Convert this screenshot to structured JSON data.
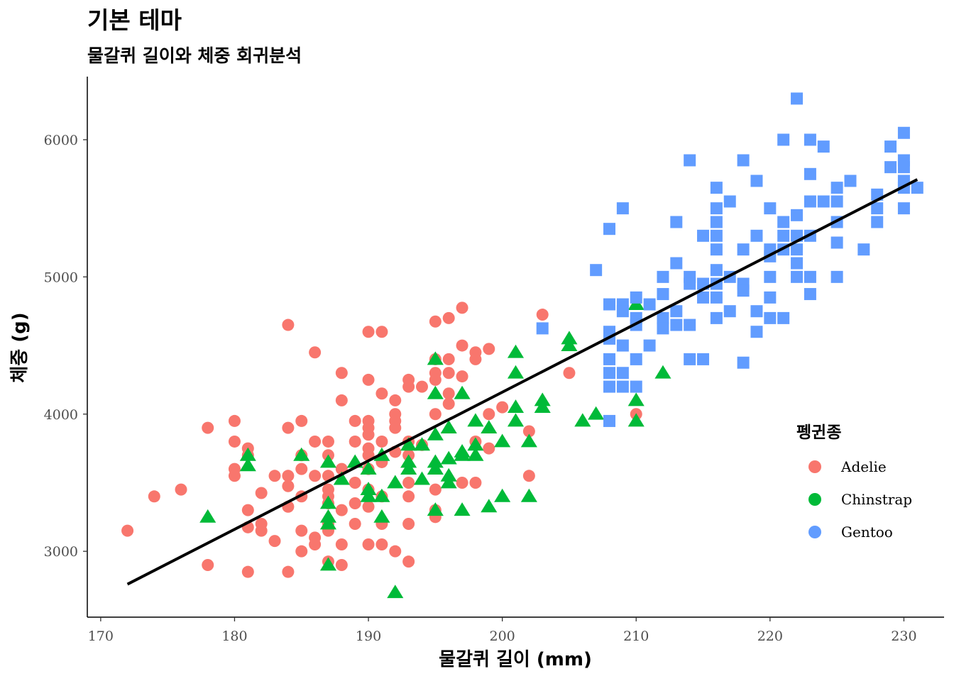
{
  "chart_data": {
    "type": "scatter",
    "title": "기본 테마",
    "subtitle": "물갈퀴 길이와 체중 회귀분석",
    "xlabel": "물갈퀴 길이 (mm)",
    "ylabel": "체중 (g)",
    "xlim": [
      169,
      233
    ],
    "ylim": [
      2520,
      6460
    ],
    "x_ticks": [
      170,
      180,
      190,
      200,
      210,
      220,
      230
    ],
    "y_ticks": [
      3000,
      4000,
      5000,
      6000
    ],
    "grid": false,
    "legend": {
      "title": "펭귄종",
      "position": "right"
    },
    "series": [
      {
        "name": "Adelie",
        "color": "#F8766D",
        "marker": "circle",
        "points": [
          [
            172,
            3150
          ],
          [
            174,
            3400
          ],
          [
            176,
            3450
          ],
          [
            178,
            3900
          ],
          [
            178,
            2900
          ],
          [
            180,
            3950
          ],
          [
            180,
            3800
          ],
          [
            180,
            3600
          ],
          [
            180,
            3550
          ],
          [
            181,
            3750
          ],
          [
            181,
            3700
          ],
          [
            181,
            3300
          ],
          [
            181,
            3175
          ],
          [
            181,
            2850
          ],
          [
            182,
            3200
          ],
          [
            182,
            3150
          ],
          [
            182,
            3425
          ],
          [
            183,
            3550
          ],
          [
            183,
            3075
          ],
          [
            184,
            4650
          ],
          [
            184,
            3900
          ],
          [
            184,
            3550
          ],
          [
            184,
            3475
          ],
          [
            184,
            3325
          ],
          [
            184,
            2850
          ],
          [
            185,
            3950
          ],
          [
            185,
            3700
          ],
          [
            185,
            3600
          ],
          [
            185,
            3400
          ],
          [
            185,
            3150
          ],
          [
            185,
            3000
          ],
          [
            186,
            4450
          ],
          [
            186,
            3800
          ],
          [
            186,
            3550
          ],
          [
            186,
            3100
          ],
          [
            186,
            3050
          ],
          [
            187,
            3800
          ],
          [
            187,
            3700
          ],
          [
            187,
            3550
          ],
          [
            187,
            3450
          ],
          [
            187,
            3400
          ],
          [
            187,
            3350
          ],
          [
            187,
            3200
          ],
          [
            187,
            3150
          ],
          [
            187,
            2925
          ],
          [
            188,
            4300
          ],
          [
            188,
            4100
          ],
          [
            188,
            3600
          ],
          [
            188,
            3300
          ],
          [
            188,
            3050
          ],
          [
            188,
            2900
          ],
          [
            189,
            3950
          ],
          [
            189,
            3800
          ],
          [
            189,
            3500
          ],
          [
            189,
            3350
          ],
          [
            189,
            3200
          ],
          [
            190,
            4600
          ],
          [
            190,
            4250
          ],
          [
            190,
            3950
          ],
          [
            190,
            3900
          ],
          [
            190,
            3850
          ],
          [
            190,
            3750
          ],
          [
            190,
            3700
          ],
          [
            190,
            3600
          ],
          [
            190,
            3450
          ],
          [
            190,
            3325
          ],
          [
            190,
            3050
          ],
          [
            191,
            4600
          ],
          [
            191,
            4150
          ],
          [
            191,
            3800
          ],
          [
            191,
            3650
          ],
          [
            191,
            3400
          ],
          [
            191,
            3200
          ],
          [
            191,
            3050
          ],
          [
            192,
            4100
          ],
          [
            192,
            4000
          ],
          [
            192,
            3950
          ],
          [
            192,
            3900
          ],
          [
            192,
            3725
          ],
          [
            192,
            3000
          ],
          [
            193,
            4250
          ],
          [
            193,
            4200
          ],
          [
            193,
            3800
          ],
          [
            193,
            3700
          ],
          [
            193,
            3500
          ],
          [
            193,
            3400
          ],
          [
            193,
            3200
          ],
          [
            193,
            2925
          ],
          [
            194,
            4200
          ],
          [
            194,
            3775
          ],
          [
            195,
            4675
          ],
          [
            195,
            4400
          ],
          [
            195,
            4300
          ],
          [
            195,
            4250
          ],
          [
            195,
            4000
          ],
          [
            195,
            3450
          ],
          [
            195,
            3300
          ],
          [
            195,
            3250
          ],
          [
            196,
            4700
          ],
          [
            196,
            4400
          ],
          [
            196,
            4300
          ],
          [
            196,
            4150
          ],
          [
            196,
            4075
          ],
          [
            197,
            4775
          ],
          [
            197,
            4500
          ],
          [
            197,
            4275
          ],
          [
            197,
            3500
          ],
          [
            198,
            4450
          ],
          [
            198,
            4400
          ],
          [
            198,
            3800
          ],
          [
            198,
            3500
          ],
          [
            199,
            4475
          ],
          [
            199,
            4000
          ],
          [
            199,
            3750
          ],
          [
            200,
            4050
          ],
          [
            202,
            3875
          ],
          [
            202,
            3550
          ],
          [
            203,
            4725
          ],
          [
            205,
            4300
          ],
          [
            210,
            4000
          ]
        ]
      },
      {
        "name": "Chinstrap",
        "color": "#00BA38",
        "marker": "triangle",
        "points": [
          [
            178,
            3250
          ],
          [
            181,
            3700
          ],
          [
            181,
            3625
          ],
          [
            185,
            3700
          ],
          [
            187,
            3650
          ],
          [
            187,
            3350
          ],
          [
            187,
            3250
          ],
          [
            187,
            3200
          ],
          [
            187,
            2900
          ],
          [
            188,
            3525
          ],
          [
            189,
            3650
          ],
          [
            190,
            3600
          ],
          [
            190,
            3450
          ],
          [
            190,
            3400
          ],
          [
            191,
            3700
          ],
          [
            191,
            3400
          ],
          [
            191,
            3250
          ],
          [
            192,
            3500
          ],
          [
            192,
            2700
          ],
          [
            193,
            3775
          ],
          [
            193,
            3650
          ],
          [
            193,
            3600
          ],
          [
            194,
            3775
          ],
          [
            194,
            3525
          ],
          [
            195,
            4400
          ],
          [
            195,
            4150
          ],
          [
            195,
            3850
          ],
          [
            195,
            3650
          ],
          [
            195,
            3600
          ],
          [
            195,
            3300
          ],
          [
            196,
            3900
          ],
          [
            196,
            3675
          ],
          [
            196,
            3550
          ],
          [
            196,
            3500
          ],
          [
            197,
            4150
          ],
          [
            197,
            3725
          ],
          [
            197,
            3700
          ],
          [
            197,
            3300
          ],
          [
            198,
            3950
          ],
          [
            198,
            3775
          ],
          [
            198,
            3700
          ],
          [
            199,
            3900
          ],
          [
            199,
            3325
          ],
          [
            200,
            3800
          ],
          [
            200,
            3400
          ],
          [
            201,
            4450
          ],
          [
            201,
            4300
          ],
          [
            201,
            4050
          ],
          [
            201,
            3950
          ],
          [
            202,
            3800
          ],
          [
            202,
            3400
          ],
          [
            203,
            4100
          ],
          [
            203,
            4050
          ],
          [
            205,
            4550
          ],
          [
            205,
            4500
          ],
          [
            206,
            3950
          ],
          [
            207,
            4000
          ],
          [
            210,
            4800
          ],
          [
            210,
            4100
          ],
          [
            210,
            3950
          ],
          [
            212,
            4300
          ]
        ]
      },
      {
        "name": "Gentoo",
        "color": "#619CFF",
        "marker": "square",
        "points": [
          [
            203,
            4625
          ],
          [
            207,
            5050
          ],
          [
            208,
            5350
          ],
          [
            208,
            4800
          ],
          [
            208,
            4600
          ],
          [
            208,
            4550
          ],
          [
            208,
            4400
          ],
          [
            208,
            4300
          ],
          [
            208,
            4200
          ],
          [
            208,
            3950
          ],
          [
            209,
            5500
          ],
          [
            209,
            4800
          ],
          [
            209,
            4750
          ],
          [
            209,
            4500
          ],
          [
            209,
            4300
          ],
          [
            209,
            4200
          ],
          [
            210,
            4850
          ],
          [
            210,
            4700
          ],
          [
            210,
            4650
          ],
          [
            210,
            4400
          ],
          [
            210,
            4200
          ],
          [
            211,
            4800
          ],
          [
            211,
            4500
          ],
          [
            212,
            5000
          ],
          [
            212,
            4875
          ],
          [
            212,
            4700
          ],
          [
            212,
            4625
          ],
          [
            213,
            5400
          ],
          [
            213,
            5100
          ],
          [
            213,
            4750
          ],
          [
            213,
            4650
          ],
          [
            214,
            5850
          ],
          [
            214,
            5000
          ],
          [
            214,
            4950
          ],
          [
            214,
            4650
          ],
          [
            214,
            4400
          ],
          [
            215,
            5300
          ],
          [
            215,
            4950
          ],
          [
            215,
            4850
          ],
          [
            215,
            4400
          ],
          [
            216,
            5650
          ],
          [
            216,
            5500
          ],
          [
            216,
            5400
          ],
          [
            216,
            5300
          ],
          [
            216,
            5200
          ],
          [
            216,
            5050
          ],
          [
            216,
            4950
          ],
          [
            216,
            4850
          ],
          [
            216,
            4700
          ],
          [
            217,
            5550
          ],
          [
            217,
            5000
          ],
          [
            217,
            4750
          ],
          [
            218,
            5850
          ],
          [
            218,
            5200
          ],
          [
            218,
            4950
          ],
          [
            218,
            4900
          ],
          [
            218,
            4375
          ],
          [
            219,
            5700
          ],
          [
            219,
            5300
          ],
          [
            219,
            4750
          ],
          [
            219,
            4600
          ],
          [
            220,
            5500
          ],
          [
            220,
            5200
          ],
          [
            220,
            5150
          ],
          [
            220,
            5000
          ],
          [
            220,
            4850
          ],
          [
            220,
            4700
          ],
          [
            221,
            6000
          ],
          [
            221,
            5400
          ],
          [
            221,
            5300
          ],
          [
            221,
            5200
          ],
          [
            221,
            4700
          ],
          [
            222,
            6300
          ],
          [
            222,
            5450
          ],
          [
            222,
            5300
          ],
          [
            222,
            5200
          ],
          [
            222,
            5100
          ],
          [
            222,
            5000
          ],
          [
            223,
            6000
          ],
          [
            223,
            5750
          ],
          [
            223,
            5550
          ],
          [
            223,
            5300
          ],
          [
            223,
            5000
          ],
          [
            223,
            4875
          ],
          [
            224,
            5550
          ],
          [
            224,
            5950
          ],
          [
            225,
            5650
          ],
          [
            225,
            5550
          ],
          [
            225,
            5400
          ],
          [
            225,
            5250
          ],
          [
            225,
            5000
          ],
          [
            226,
            5700
          ],
          [
            227,
            5200
          ],
          [
            228,
            5600
          ],
          [
            228,
            5500
          ],
          [
            228,
            5400
          ],
          [
            229,
            5950
          ],
          [
            229,
            5800
          ],
          [
            230,
            6050
          ],
          [
            230,
            5850
          ],
          [
            230,
            5800
          ],
          [
            230,
            5700
          ],
          [
            230,
            5650
          ],
          [
            230,
            5500
          ],
          [
            231,
            5650
          ]
        ]
      }
    ],
    "regression_line": {
      "color": "#000000",
      "points": [
        [
          172,
          2760
        ],
        [
          231,
          5710
        ]
      ]
    }
  }
}
